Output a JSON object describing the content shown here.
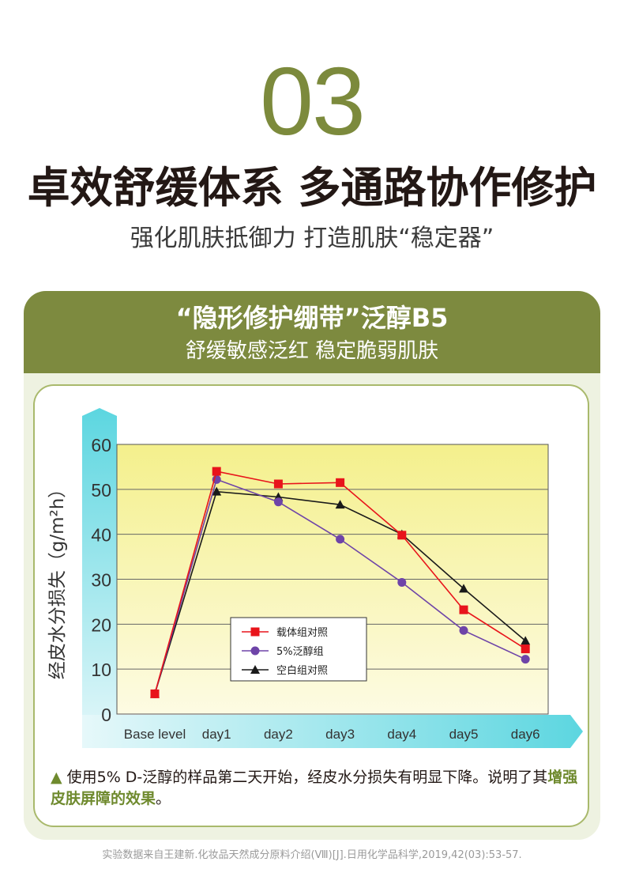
{
  "header": {
    "number": "03",
    "title": "卓效舒缓体系  多通路协作修护",
    "subtitle": "强化肌肤抵御力  打造肌肤“稳定器”"
  },
  "card": {
    "title": "“隐形修护绷带”泛醇B5",
    "subtitle": "舒缓敏感泛红  稳定脆弱肌肤"
  },
  "chart_data": {
    "type": "line",
    "categories": [
      "Base level",
      "day1",
      "day2",
      "day3",
      "day4",
      "day5",
      "day6"
    ],
    "ylabel": "经皮水分损失（g/m²h）",
    "xlabel": "",
    "ylim": [
      0,
      60
    ],
    "yticks": [
      0,
      10,
      20,
      30,
      40,
      50,
      60
    ],
    "grid": true,
    "legend_position": "center-left",
    "series": [
      {
        "name": "载体组对照",
        "color": "#e8141b",
        "marker": "square",
        "values": [
          4.5,
          54,
          51.2,
          51.5,
          39.8,
          23.2,
          14.5
        ]
      },
      {
        "name": "5%泛醇组",
        "color": "#6e44a8",
        "marker": "circle",
        "values": [
          4.5,
          52.2,
          47.2,
          38.9,
          29.3,
          18.6,
          12.2
        ]
      },
      {
        "name": "空白组对照",
        "color": "#1a1a1a",
        "marker": "triangle",
        "values": [
          4.5,
          49.5,
          48.3,
          46.6,
          40.0,
          27.9,
          16.3
        ]
      }
    ]
  },
  "note": {
    "marker": "▲",
    "text_before": "使用5% D-泛醇的样品第二天开始，经皮水分损失有明显下降。说明了其",
    "highlight": "增强皮肤屏障的效果",
    "text_after": "。"
  },
  "source": "实验数据来自王建新.化妆品天然成分原料介绍(Ⅷ)[J].日用化学品科学,2019,42(03):53-57."
}
